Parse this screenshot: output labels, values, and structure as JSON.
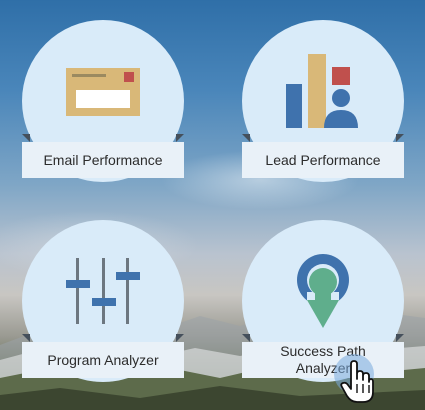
{
  "tiles": [
    {
      "label": "Email Performance",
      "icon": "envelope-icon"
    },
    {
      "label": "Lead Performance",
      "icon": "lead-chart-icon"
    },
    {
      "label": "Program Analyzer",
      "icon": "sliders-icon"
    },
    {
      "label": "Success Path\nAnalyzer",
      "icon": "success-path-icon"
    }
  ],
  "colors": {
    "tile_circle": "#d9ebf9",
    "label_bg": "#e9f1f8",
    "envelope": "#d9b878",
    "stamp": "#c0504d",
    "bar_blue": "#3f72ad",
    "slider_blue": "#3f72ad",
    "pin_green": "#5fae8c"
  }
}
